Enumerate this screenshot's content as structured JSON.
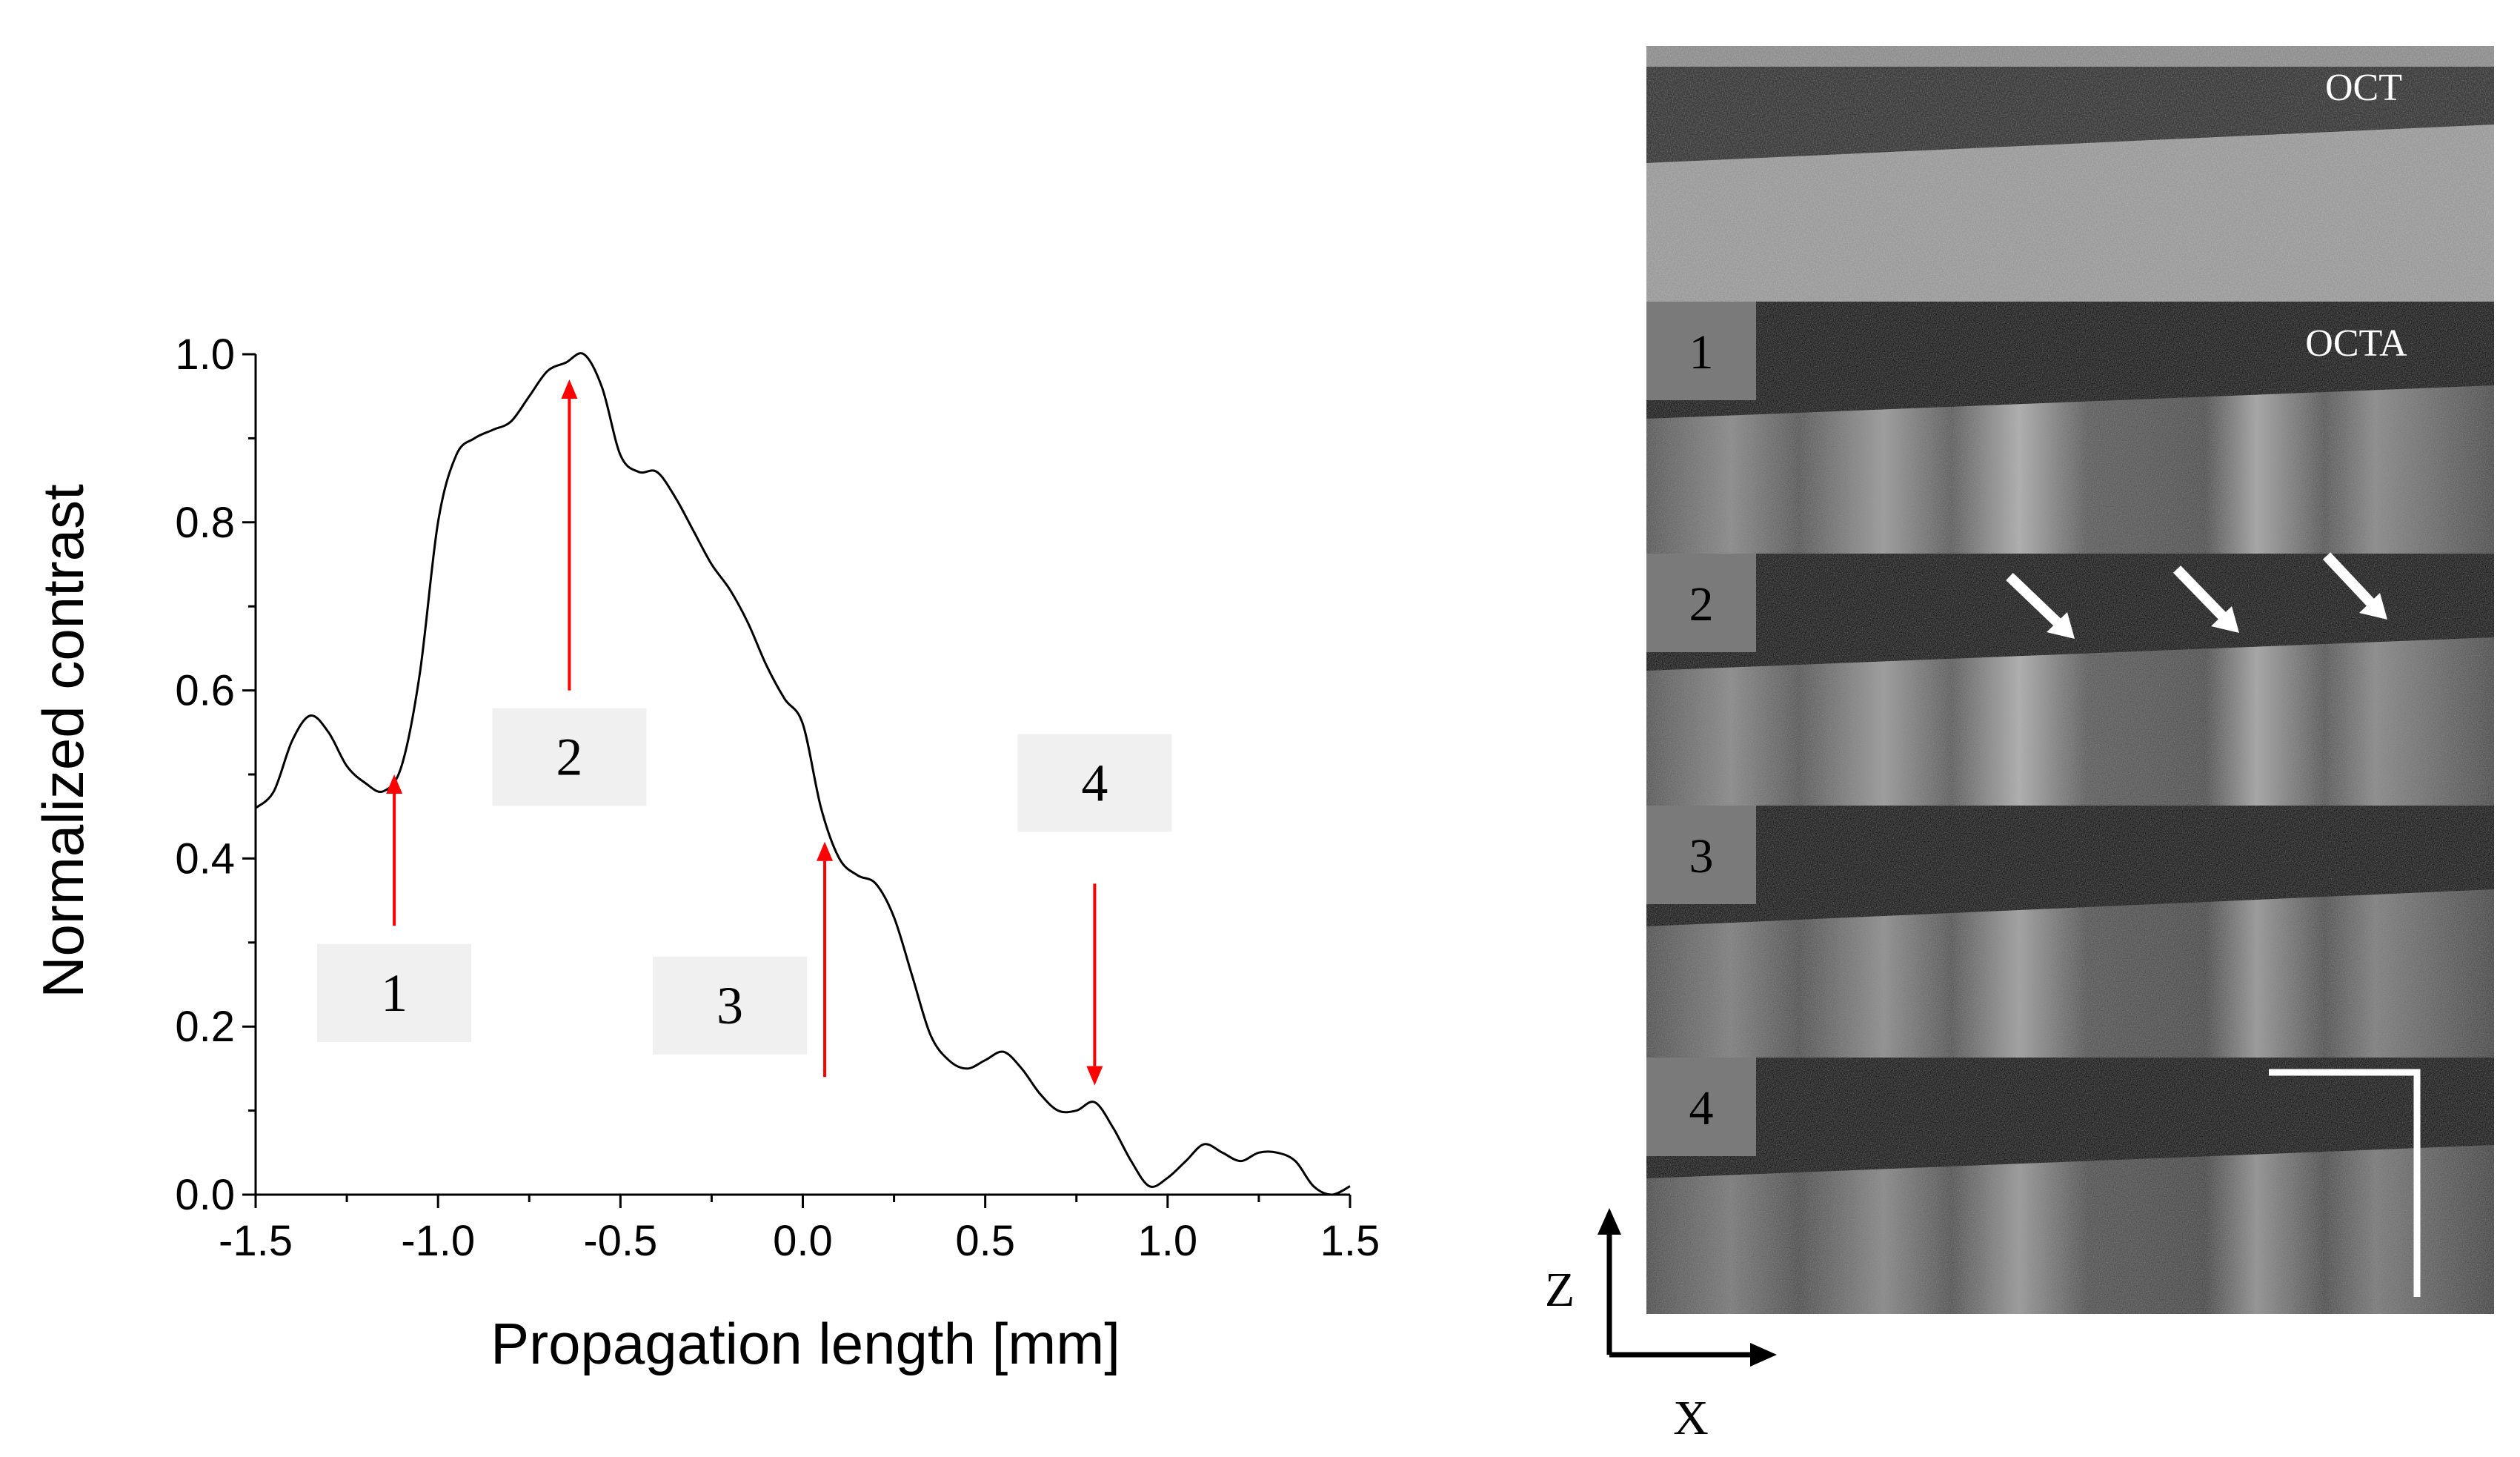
{
  "chart_data": {
    "type": "line",
    "xlabel": "Propagation length [mm]",
    "ylabel": "Normalized contrast",
    "xlim": [
      -1.5,
      1.5
    ],
    "ylim": [
      0.0,
      1.0
    ],
    "xticks": [
      "-1.5",
      "-1.0",
      "-0.5",
      "0.0",
      "0.5",
      "1.0",
      "1.5"
    ],
    "yticks": [
      "0.0",
      "0.2",
      "0.4",
      "0.6",
      "0.8",
      "1.0"
    ],
    "grid": false,
    "series": [
      {
        "color": "#000000",
        "x": [
          -1.5,
          -1.45,
          -1.4,
          -1.35,
          -1.3,
          -1.25,
          -1.2,
          -1.15,
          -1.1,
          -1.05,
          -1.0,
          -0.95,
          -0.9,
          -0.85,
          -0.8,
          -0.75,
          -0.7,
          -0.65,
          -0.6,
          -0.55,
          -0.5,
          -0.45,
          -0.4,
          -0.35,
          -0.3,
          -0.25,
          -0.2,
          -0.15,
          -0.1,
          -0.05,
          0.0,
          0.05,
          0.1,
          0.15,
          0.2,
          0.25,
          0.3,
          0.35,
          0.4,
          0.45,
          0.5,
          0.55,
          0.6,
          0.65,
          0.7,
          0.75,
          0.8,
          0.85,
          0.9,
          0.95,
          1.0,
          1.05,
          1.1,
          1.15,
          1.2,
          1.25,
          1.3,
          1.35,
          1.4,
          1.45,
          1.5
        ],
        "y": [
          0.46,
          0.48,
          0.54,
          0.57,
          0.55,
          0.51,
          0.49,
          0.48,
          0.51,
          0.62,
          0.8,
          0.88,
          0.9,
          0.91,
          0.92,
          0.95,
          0.98,
          0.99,
          1.0,
          0.96,
          0.88,
          0.86,
          0.86,
          0.83,
          0.79,
          0.75,
          0.72,
          0.68,
          0.63,
          0.59,
          0.56,
          0.46,
          0.4,
          0.38,
          0.37,
          0.33,
          0.26,
          0.19,
          0.16,
          0.15,
          0.16,
          0.17,
          0.15,
          0.12,
          0.1,
          0.1,
          0.11,
          0.08,
          0.04,
          0.01,
          0.02,
          0.04,
          0.06,
          0.05,
          0.04,
          0.05,
          0.05,
          0.04,
          0.01,
          0.0,
          0.01
        ]
      }
    ],
    "annotations": [
      {
        "label": "1",
        "x": -1.12,
        "arrow_from": 0.32,
        "arrow_to": 0.5,
        "direction": "up"
      },
      {
        "label": "2",
        "x": -0.64,
        "arrow_from": 0.6,
        "arrow_to": 0.97,
        "direction": "up"
      },
      {
        "label": "3",
        "x": 0.06,
        "arrow_from": 0.14,
        "arrow_to": 0.42,
        "direction": "up"
      },
      {
        "label": "4",
        "x": 0.8,
        "arrow_from": 0.37,
        "arrow_to": 0.13,
        "direction": "down"
      }
    ],
    "arrow_color": "#ff0000"
  },
  "image_panel": {
    "top_label": "OCT",
    "second_label": "OCTA",
    "panel_labels": [
      "1",
      "2",
      "3",
      "4"
    ],
    "axis_z": "Z",
    "axis_x": "X"
  }
}
